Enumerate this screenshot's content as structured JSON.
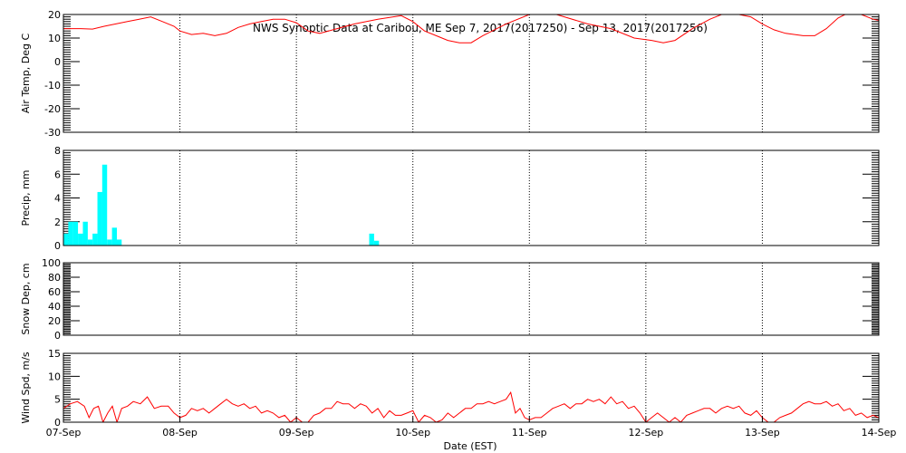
{
  "chart_data": {
    "title": "NWS Synoptic Data at Caribou, ME   Sep  7, 2017(2017250) - Sep 13, 2017(2017256)",
    "xlabel": "Date (EST)",
    "x_ticks": [
      "07-Sep",
      "08-Sep",
      "09-Sep",
      "10-Sep",
      "11-Sep",
      "12-Sep",
      "13-Sep",
      "14-Sep"
    ],
    "x_range_days": [
      0,
      7
    ],
    "panels": [
      {
        "type": "line",
        "ylabel": "Air Temp, Deg C",
        "ylim": [
          -30,
          20
        ],
        "yticks": [
          20,
          10,
          0,
          -10,
          -20,
          -30
        ],
        "color": "#ff0000",
        "series": [
          {
            "values": [
              [
                0.0,
                14
              ],
              [
                0.15,
                14
              ],
              [
                0.25,
                13.8
              ],
              [
                0.35,
                15
              ],
              [
                0.45,
                16
              ],
              [
                0.55,
                17
              ],
              [
                0.65,
                18
              ],
              [
                0.75,
                19
              ],
              [
                0.85,
                17
              ],
              [
                0.95,
                15
              ],
              [
                1.0,
                13
              ],
              [
                1.1,
                11.5
              ],
              [
                1.2,
                12
              ],
              [
                1.3,
                11
              ],
              [
                1.4,
                12
              ],
              [
                1.5,
                14.5
              ],
              [
                1.6,
                16
              ],
              [
                1.7,
                17
              ],
              [
                1.8,
                18
              ],
              [
                1.9,
                18
              ],
              [
                2.0,
                16.5
              ],
              [
                2.1,
                13
              ],
              [
                2.2,
                12
              ],
              [
                2.35,
                14
              ],
              [
                2.5,
                16
              ],
              [
                2.7,
                18
              ],
              [
                2.9,
                19.5
              ],
              [
                3.0,
                17
              ],
              [
                3.1,
                13
              ],
              [
                3.2,
                11
              ],
              [
                3.3,
                9
              ],
              [
                3.4,
                8
              ],
              [
                3.5,
                8
              ],
              [
                3.6,
                11
              ],
              [
                3.8,
                16
              ],
              [
                4.0,
                20
              ],
              [
                4.1,
                22
              ],
              [
                4.3,
                19
              ],
              [
                4.5,
                16
              ],
              [
                4.7,
                14
              ],
              [
                4.9,
                10
              ],
              [
                5.05,
                9
              ],
              [
                5.15,
                8
              ],
              [
                5.25,
                9
              ],
              [
                5.4,
                14
              ],
              [
                5.55,
                18
              ],
              [
                5.7,
                21
              ],
              [
                5.9,
                19
              ],
              [
                6.0,
                16
              ],
              [
                6.1,
                13.5
              ],
              [
                6.2,
                12
              ],
              [
                6.35,
                11
              ],
              [
                6.45,
                11
              ],
              [
                6.55,
                14
              ],
              [
                6.65,
                18.5
              ],
              [
                6.75,
                21
              ],
              [
                6.85,
                20
              ],
              [
                6.95,
                18
              ],
              [
                7.0,
                17.5
              ]
            ]
          }
        ]
      },
      {
        "type": "bar",
        "ylabel": "Precip, mm",
        "ylim": [
          0,
          8
        ],
        "yticks": [
          8,
          6,
          4,
          2,
          0
        ],
        "color": "#00ffff",
        "bar_width_days": 0.042,
        "series": [
          {
            "values": [
              [
                0.0,
                1.0
              ],
              [
                0.042,
                2.0
              ],
              [
                0.083,
                2.0
              ],
              [
                0.125,
                1.0
              ],
              [
                0.167,
                2.0
              ],
              [
                0.208,
                0.5
              ],
              [
                0.25,
                1.0
              ],
              [
                0.292,
                4.5
              ],
              [
                0.333,
                6.8
              ],
              [
                0.375,
                0.5
              ],
              [
                0.417,
                1.5
              ],
              [
                0.458,
                0.5
              ],
              [
                2.625,
                1.0
              ],
              [
                2.667,
                0.4
              ]
            ]
          }
        ]
      },
      {
        "type": "line",
        "ylabel": "Snow Dep, cm",
        "ylim": [
          0,
          100
        ],
        "yticks": [
          100,
          80,
          60,
          40,
          20,
          0
        ],
        "color": "#ff0000",
        "series": [
          {
            "values": []
          }
        ]
      },
      {
        "type": "line",
        "ylabel": "Wind Spd, m/s",
        "ylim": [
          0,
          15
        ],
        "yticks": [
          15,
          10,
          5,
          0
        ],
        "color": "#ff0000",
        "series": [
          {
            "values": [
              [
                0.0,
                3
              ],
              [
                0.06,
                4
              ],
              [
                0.12,
                4.5
              ],
              [
                0.18,
                3.5
              ],
              [
                0.22,
                1
              ],
              [
                0.26,
                3
              ],
              [
                0.3,
                3.5
              ],
              [
                0.34,
                0
              ],
              [
                0.38,
                2
              ],
              [
                0.42,
                3.5
              ],
              [
                0.46,
                0
              ],
              [
                0.5,
                3
              ],
              [
                0.55,
                3.5
              ],
              [
                0.6,
                4.5
              ],
              [
                0.66,
                4
              ],
              [
                0.72,
                5.5
              ],
              [
                0.78,
                3
              ],
              [
                0.84,
                3.5
              ],
              [
                0.9,
                3.5
              ],
              [
                0.95,
                2
              ],
              [
                1.0,
                1
              ],
              [
                1.05,
                1.5
              ],
              [
                1.1,
                3
              ],
              [
                1.15,
                2.5
              ],
              [
                1.2,
                3
              ],
              [
                1.25,
                2
              ],
              [
                1.3,
                3
              ],
              [
                1.35,
                4
              ],
              [
                1.4,
                5
              ],
              [
                1.45,
                4
              ],
              [
                1.5,
                3.5
              ],
              [
                1.55,
                4
              ],
              [
                1.6,
                3
              ],
              [
                1.65,
                3.5
              ],
              [
                1.7,
                2
              ],
              [
                1.75,
                2.5
              ],
              [
                1.8,
                2
              ],
              [
                1.85,
                1
              ],
              [
                1.9,
                1.5
              ],
              [
                1.95,
                0
              ],
              [
                2.0,
                1
              ],
              [
                2.05,
                0
              ],
              [
                2.1,
                0
              ],
              [
                2.15,
                1.5
              ],
              [
                2.2,
                2
              ],
              [
                2.25,
                3
              ],
              [
                2.3,
                3
              ],
              [
                2.35,
                4.5
              ],
              [
                2.4,
                4
              ],
              [
                2.45,
                4
              ],
              [
                2.5,
                3
              ],
              [
                2.55,
                4
              ],
              [
                2.6,
                3.5
              ],
              [
                2.65,
                2
              ],
              [
                2.7,
                3
              ],
              [
                2.75,
                1
              ],
              [
                2.8,
                2.5
              ],
              [
                2.85,
                1.5
              ],
              [
                2.9,
                1.5
              ],
              [
                2.95,
                2
              ],
              [
                3.0,
                2.5
              ],
              [
                3.05,
                0
              ],
              [
                3.1,
                1.5
              ],
              [
                3.15,
                1
              ],
              [
                3.2,
                0
              ],
              [
                3.25,
                0.5
              ],
              [
                3.3,
                2
              ],
              [
                3.35,
                1
              ],
              [
                3.4,
                2
              ],
              [
                3.45,
                3
              ],
              [
                3.5,
                3
              ],
              [
                3.55,
                4
              ],
              [
                3.6,
                4
              ],
              [
                3.65,
                4.5
              ],
              [
                3.7,
                4
              ],
              [
                3.75,
                4.5
              ],
              [
                3.8,
                5
              ],
              [
                3.84,
                6.5
              ],
              [
                3.88,
                2
              ],
              [
                3.92,
                3
              ],
              [
                3.96,
                1
              ],
              [
                4.0,
                0.5
              ],
              [
                4.05,
                1
              ],
              [
                4.1,
                1
              ],
              [
                4.15,
                2
              ],
              [
                4.2,
                3
              ],
              [
                4.25,
                3.5
              ],
              [
                4.3,
                4
              ],
              [
                4.35,
                3
              ],
              [
                4.4,
                4
              ],
              [
                4.45,
                4
              ],
              [
                4.5,
                5
              ],
              [
                4.55,
                4.5
              ],
              [
                4.6,
                5
              ],
              [
                4.65,
                4
              ],
              [
                4.7,
                5.5
              ],
              [
                4.75,
                4
              ],
              [
                4.8,
                4.5
              ],
              [
                4.85,
                3
              ],
              [
                4.9,
                3.5
              ],
              [
                4.95,
                2
              ],
              [
                5.0,
                0
              ],
              [
                5.05,
                1
              ],
              [
                5.1,
                2
              ],
              [
                5.15,
                1
              ],
              [
                5.2,
                0
              ],
              [
                5.25,
                1
              ],
              [
                5.3,
                0
              ],
              [
                5.35,
                1.5
              ],
              [
                5.4,
                2
              ],
              [
                5.45,
                2.5
              ],
              [
                5.5,
                3
              ],
              [
                5.55,
                3
              ],
              [
                5.6,
                2
              ],
              [
                5.65,
                3
              ],
              [
                5.7,
                3.5
              ],
              [
                5.75,
                3
              ],
              [
                5.8,
                3.5
              ],
              [
                5.85,
                2
              ],
              [
                5.9,
                1.5
              ],
              [
                5.95,
                2.5
              ],
              [
                6.0,
                1
              ],
              [
                6.05,
                0
              ],
              [
                6.1,
                0
              ],
              [
                6.15,
                1
              ],
              [
                6.2,
                1.5
              ],
              [
                6.25,
                2
              ],
              [
                6.3,
                3
              ],
              [
                6.35,
                4
              ],
              [
                6.4,
                4.5
              ],
              [
                6.45,
                4
              ],
              [
                6.5,
                4
              ],
              [
                6.55,
                4.5
              ],
              [
                6.6,
                3.5
              ],
              [
                6.65,
                4
              ],
              [
                6.7,
                2.5
              ],
              [
                6.75,
                3
              ],
              [
                6.8,
                1.5
              ],
              [
                6.85,
                2
              ],
              [
                6.9,
                1
              ],
              [
                6.95,
                1.5
              ],
              [
                7.0,
                1
              ]
            ]
          }
        ]
      }
    ]
  }
}
